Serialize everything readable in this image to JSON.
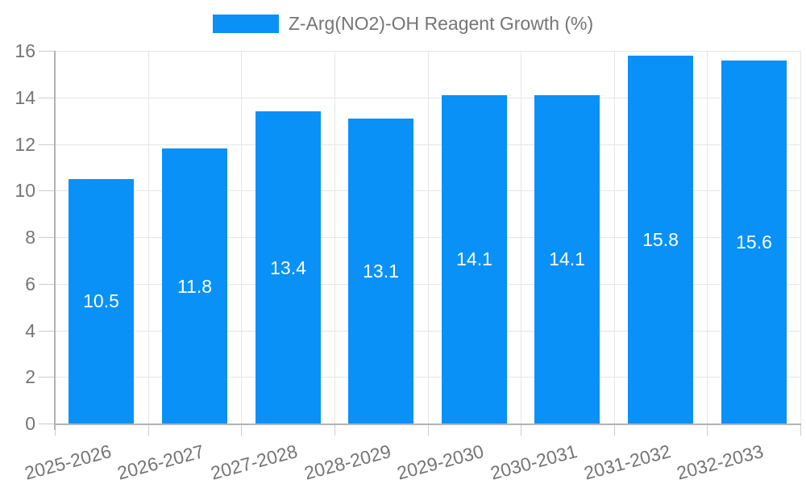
{
  "legend": {
    "label": "Z-Arg(NO2)-OH Reagent Growth (%)"
  },
  "chart_data": {
    "type": "bar",
    "title": "Z-Arg(NO2)-OH Reagent Growth (%)",
    "series": [
      {
        "name": "Z-Arg(NO2)-OH Reagent Growth (%)",
        "values": [
          10.5,
          11.8,
          13.4,
          13.1,
          14.1,
          14.1,
          15.8,
          15.6
        ]
      }
    ],
    "categories": [
      "2025-2026",
      "2026-2027",
      "2027-2028",
      "2028-2029",
      "2029-2030",
      "2030-2031",
      "2031-2032",
      "2032-2033"
    ],
    "values": [
      10.5,
      11.8,
      13.4,
      13.1,
      14.1,
      14.1,
      15.8,
      15.6
    ],
    "value_labels": [
      "10.5",
      "11.8",
      "13.4",
      "13.1",
      "14.1",
      "14.1",
      "15.8",
      "15.6"
    ],
    "xlabel": "",
    "ylabel": "",
    "ylim": [
      0,
      16
    ],
    "yticks": [
      0,
      2,
      4,
      6,
      8,
      10,
      12,
      14,
      16
    ],
    "grid": true,
    "legend_position": "top-center",
    "x_label_rotation_deg": -15,
    "colors": {
      "bar": "#0991f8",
      "bar_value_text": "#ffffff",
      "grid": "#e6e6e6",
      "axis": "#b3b3b3",
      "tick": "#cccccc",
      "tick_label": "#757575",
      "legend_text": "#757575",
      "background": "#ffffff"
    }
  }
}
